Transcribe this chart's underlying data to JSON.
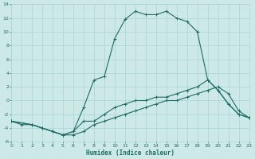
{
  "xlabel": "Humidex (Indice chaleur)",
  "bg_color": "#cce9e8",
  "line_color": "#1f6b65",
  "grid_color": "#aad4d0",
  "xlim": [
    0,
    23
  ],
  "ylim": [
    -6,
    14
  ],
  "xticks": [
    0,
    1,
    2,
    3,
    4,
    5,
    6,
    7,
    8,
    9,
    10,
    11,
    12,
    13,
    14,
    15,
    16,
    17,
    18,
    19,
    20,
    21,
    22,
    23
  ],
  "yticks": [
    -6,
    -4,
    -2,
    0,
    2,
    4,
    6,
    8,
    10,
    12,
    14
  ],
  "series": [
    {
      "x": [
        0,
        1,
        2,
        3,
        4,
        5,
        6,
        7,
        8,
        9,
        10,
        11,
        12,
        13,
        14,
        15,
        16,
        17,
        18,
        19,
        20,
        21,
        22,
        23
      ],
      "y": [
        -3,
        -3.5,
        -3.5,
        -4,
        -4.5,
        -5,
        -4.5,
        -3,
        -3,
        -2,
        -1,
        -0.5,
        0,
        0,
        0.5,
        0.5,
        1,
        1.5,
        2,
        3,
        1.5,
        -0.5,
        -2,
        -2.5
      ]
    },
    {
      "x": [
        0,
        2,
        3,
        4,
        5,
        6,
        7,
        8,
        9,
        10,
        11,
        12,
        13,
        14,
        15,
        16,
        17,
        18,
        19,
        20,
        21,
        22,
        23
      ],
      "y": [
        -3,
        -3.5,
        -4,
        -4.5,
        -5,
        -4.5,
        -1,
        3,
        3.5,
        9,
        11.8,
        13,
        12.5,
        12.5,
        13,
        12,
        11.5,
        10,
        3,
        1.5,
        -0.5,
        -2,
        -2.5
      ]
    },
    {
      "x": [
        0,
        2,
        3,
        4,
        5,
        6,
        7,
        8,
        9,
        10,
        11,
        12,
        13,
        14,
        15,
        16,
        17,
        18,
        19,
        20,
        21,
        22,
        23
      ],
      "y": [
        -3,
        -3.5,
        -4,
        -4.5,
        -5,
        -5,
        -4.5,
        -3.5,
        -3,
        -2.5,
        -2,
        -1.5,
        -1,
        -0.5,
        0,
        0,
        0.5,
        1,
        1.5,
        2,
        1,
        -1.5,
        -2.5
      ]
    }
  ]
}
